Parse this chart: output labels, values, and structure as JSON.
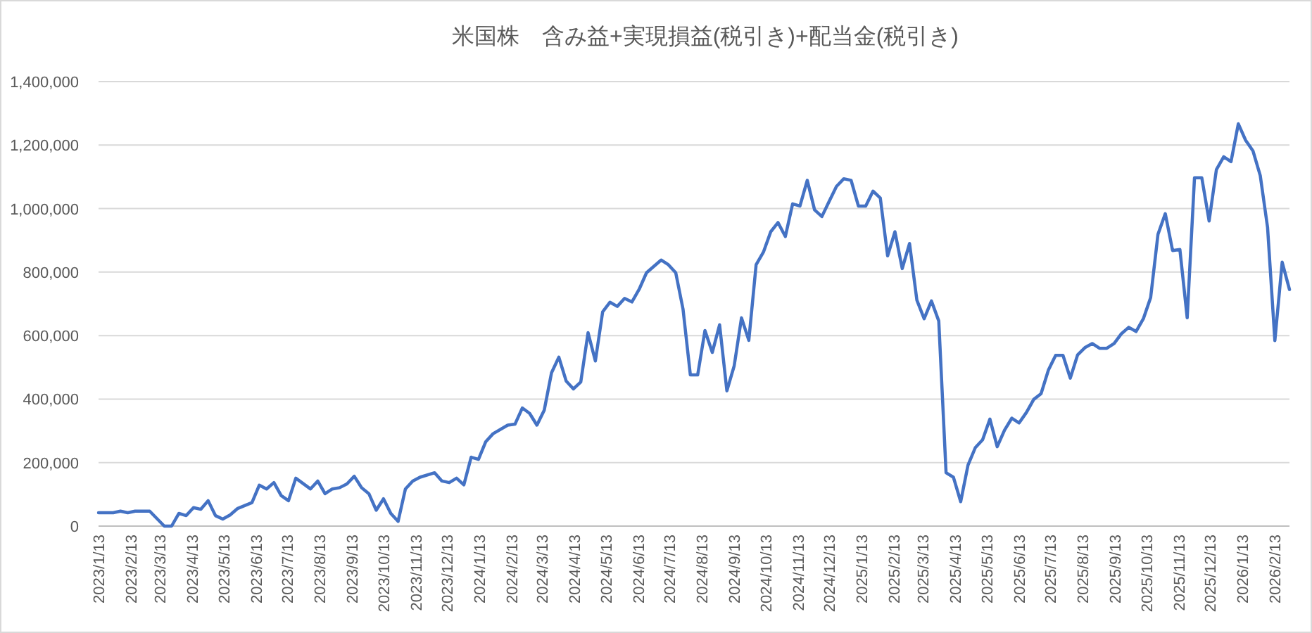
{
  "chart_data": {
    "type": "line",
    "title": "米国株　含み益+実現損益(税引き)+配当金(税引き)",
    "x": [
      "2023-01-13",
      "2023-01-27",
      "2023-02-03",
      "2023-02-10",
      "2023-02-17",
      "2023-03-03",
      "2023-03-17",
      "2023-03-24",
      "2023-03-31",
      "2023-04-07",
      "2023-04-14",
      "2023-04-21",
      "2023-04-28",
      "2023-05-05",
      "2023-05-12",
      "2023-05-19",
      "2023-05-26",
      "2023-06-09",
      "2023-06-16",
      "2023-06-23",
      "2023-06-30",
      "2023-07-07",
      "2023-07-14",
      "2023-07-21",
      "2023-08-04",
      "2023-08-11",
      "2023-08-18",
      "2023-08-25",
      "2023-09-01",
      "2023-09-08",
      "2023-09-15",
      "2023-09-22",
      "2023-09-29",
      "2023-10-06",
      "2023-10-13",
      "2023-10-20",
      "2023-10-27",
      "2023-11-03",
      "2023-11-10",
      "2023-11-17",
      "2023-12-01",
      "2023-12-08",
      "2023-12-15",
      "2023-12-22",
      "2023-12-29",
      "2024-01-05",
      "2024-01-12",
      "2024-01-19",
      "2024-01-26",
      "2024-02-09",
      "2024-02-16",
      "2024-02-23",
      "2024-03-01",
      "2024-03-08",
      "2024-03-15",
      "2024-03-22",
      "2024-03-29",
      "2024-04-05",
      "2024-04-12",
      "2024-04-19",
      "2024-04-26",
      "2024-05-03",
      "2024-05-10",
      "2024-05-17",
      "2024-05-24",
      "2024-05-31",
      "2024-06-07",
      "2024-06-14",
      "2024-06-21",
      "2024-07-05",
      "2024-07-12",
      "2024-07-19",
      "2024-07-26",
      "2024-08-02",
      "2024-08-09",
      "2024-08-16",
      "2024-08-23",
      "2024-08-30",
      "2024-09-06",
      "2024-09-13",
      "2024-09-20",
      "2024-09-27",
      "2024-10-04",
      "2024-10-11",
      "2024-10-18",
      "2024-10-25",
      "2024-11-01",
      "2024-11-08",
      "2024-11-15",
      "2024-11-22",
      "2024-11-29",
      "2024-12-06",
      "2024-12-13",
      "2024-12-20",
      "2024-12-27",
      "2025-01-03",
      "2025-01-10",
      "2025-01-17",
      "2025-01-24",
      "2025-01-31",
      "2025-02-07",
      "2025-02-14",
      "2025-02-21",
      "2025-02-28",
      "2025-03-07",
      "2025-03-14",
      "2025-03-21",
      "2025-03-28",
      "2025-04-04",
      "2025-04-11",
      "2025-04-18",
      "2025-04-25",
      "2025-05-02",
      "2025-05-09",
      "2025-05-16",
      "2025-05-23",
      "2025-05-30",
      "2025-06-06",
      "2025-06-13",
      "2025-06-20",
      "2025-06-27",
      "2025-07-04",
      "2025-07-11",
      "2025-07-18",
      "2025-07-25",
      "2025-08-01",
      "2025-08-08",
      "2025-08-15",
      "2025-08-22",
      "2025-08-29",
      "2025-09-05",
      "2025-09-12",
      "2025-09-19",
      "2025-09-26",
      "2025-10-03",
      "2025-10-10",
      "2025-10-17",
      "2025-10-24",
      "2025-10-31",
      "2025-11-07",
      "2025-11-14",
      "2025-11-21",
      "2025-11-28",
      "2025-12-05",
      "2025-12-12",
      "2025-12-19",
      "2025-12-26",
      "2026-01-02",
      "2026-01-09",
      "2026-01-16",
      "2026-01-23",
      "2026-01-30",
      "2026-02-06",
      "2026-02-13",
      "2026-02-20",
      "2026-02-27"
    ],
    "series": [
      {
        "color": "#4472c4",
        "values": [
          42000,
          42000,
          47000,
          42000,
          47000,
          47000,
          0,
          0,
          40000,
          33000,
          58000,
          53000,
          80000,
          33000,
          22000,
          35000,
          55000,
          74000,
          129000,
          117000,
          137000,
          96000,
          80000,
          151000,
          117000,
          142000,
          102000,
          117000,
          121000,
          133000,
          157000,
          121000,
          102000,
          50000,
          86000,
          40000,
          15000,
          117000,
          142000,
          154000,
          168000,
          142000,
          137000,
          151000,
          130000,
          217000,
          210000,
          266000,
          291000,
          318000,
          321000,
          372000,
          355000,
          318000,
          365000,
          483000,
          532000,
          457000,
          432000,
          454000,
          609000,
          520000,
          675000,
          705000,
          692000,
          717000,
          706000,
          746000,
          798000,
          838000,
          823000,
          798000,
          683000,
          476000,
          476000,
          616000,
          547000,
          634000,
          426000,
          505000,
          656000,
          585000,
          823000,
          863000,
          927000,
          956000,
          912000,
          1015000,
          1008000,
          1089000,
          996000,
          975000,
          1023000,
          1070000,
          1094000,
          1089000,
          1008000,
          1008000,
          1055000,
          1033000,
          851000,
          927000,
          811000,
          890000,
          712000,
          653000,
          709000,
          646000,
          168000,
          154000,
          77000,
          192000,
          247000,
          272000,
          337000,
          250000,
          302000,
          340000,
          325000,
          358000,
          399000,
          417000,
          491000,
          538000,
          538000,
          466000,
          539000,
          562000,
          575000,
          560000,
          560000,
          575000,
          606000,
          626000,
          613000,
          653000,
          720000,
          919000,
          984000,
          868000,
          871000,
          656000,
          1097000,
          1097000,
          961000,
          1123000,
          1163000,
          1148000,
          1267000,
          1215000,
          1182000,
          1104000,
          941000,
          584000,
          831000,
          745000
        ]
      }
    ],
    "xlim": [
      "2023-01-13",
      "2026-02-27"
    ],
    "xticks": [
      {
        "value": "2023-01-13",
        "label": "2023/1/13"
      },
      {
        "value": "2023-02-13",
        "label": "2023/2/13"
      },
      {
        "value": "2023-03-13",
        "label": "2023/3/13"
      },
      {
        "value": "2023-04-13",
        "label": "2023/4/13"
      },
      {
        "value": "2023-05-13",
        "label": "2023/5/13"
      },
      {
        "value": "2023-06-13",
        "label": "2023/6/13"
      },
      {
        "value": "2023-07-13",
        "label": "2023/7/13"
      },
      {
        "value": "2023-08-13",
        "label": "2023/8/13"
      },
      {
        "value": "2023-09-13",
        "label": "2023/9/13"
      },
      {
        "value": "2023-10-13",
        "label": "2023/10/13"
      },
      {
        "value": "2023-11-13",
        "label": "2023/11/13"
      },
      {
        "value": "2023-12-13",
        "label": "2023/12/13"
      },
      {
        "value": "2024-01-13",
        "label": "2024/1/13"
      },
      {
        "value": "2024-02-13",
        "label": "2024/2/13"
      },
      {
        "value": "2024-03-13",
        "label": "2024/3/13"
      },
      {
        "value": "2024-04-13",
        "label": "2024/4/13"
      },
      {
        "value": "2024-05-13",
        "label": "2024/5/13"
      },
      {
        "value": "2024-06-13",
        "label": "2024/6/13"
      },
      {
        "value": "2024-07-13",
        "label": "2024/7/13"
      },
      {
        "value": "2024-08-13",
        "label": "2024/8/13"
      },
      {
        "value": "2024-09-13",
        "label": "2024/9/13"
      },
      {
        "value": "2024-10-13",
        "label": "2024/10/13"
      },
      {
        "value": "2024-11-13",
        "label": "2024/11/13"
      },
      {
        "value": "2024-12-13",
        "label": "2024/12/13"
      },
      {
        "value": "2025-01-13",
        "label": "2025/1/13"
      },
      {
        "value": "2025-02-13",
        "label": "2025/2/13"
      },
      {
        "value": "2025-03-13",
        "label": "2025/3/13"
      },
      {
        "value": "2025-04-13",
        "label": "2025/4/13"
      },
      {
        "value": "2025-05-13",
        "label": "2025/5/13"
      },
      {
        "value": "2025-06-13",
        "label": "2025/6/13"
      },
      {
        "value": "2025-07-13",
        "label": "2025/7/13"
      },
      {
        "value": "2025-08-13",
        "label": "2025/8/13"
      },
      {
        "value": "2025-09-13",
        "label": "2025/9/13"
      },
      {
        "value": "2025-10-13",
        "label": "2025/10/13"
      },
      {
        "value": "2025-11-13",
        "label": "2025/11/13"
      },
      {
        "value": "2025-12-13",
        "label": "2025/12/13"
      },
      {
        "value": "2026-01-13",
        "label": "2026/1/13"
      },
      {
        "value": "2026-02-13",
        "label": "2026/2/13"
      }
    ],
    "ylim": [
      0,
      1400000
    ],
    "yticks": [
      {
        "value": 0,
        "label": "0"
      },
      {
        "value": 200000,
        "label": "200,000"
      },
      {
        "value": 400000,
        "label": "400,000"
      },
      {
        "value": 600000,
        "label": "600,000"
      },
      {
        "value": 800000,
        "label": "800,000"
      },
      {
        "value": 1000000,
        "label": "1,000,000"
      },
      {
        "value": 1200000,
        "label": "1,200,000"
      },
      {
        "value": 1400000,
        "label": "1,400,000"
      }
    ],
    "grid": "y",
    "marker": "none",
    "line_style": "solid"
  }
}
